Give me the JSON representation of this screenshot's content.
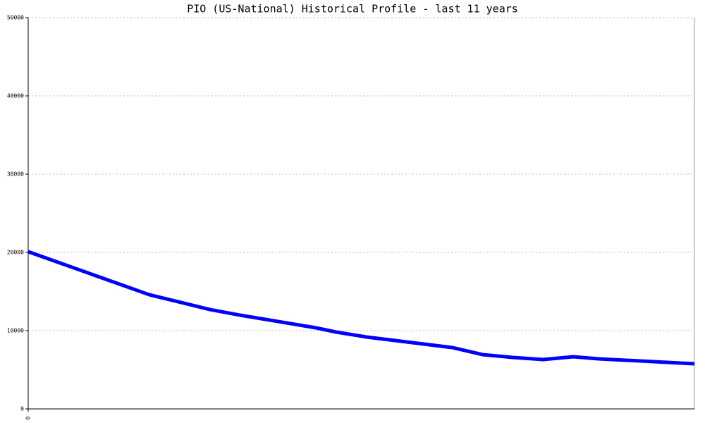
{
  "chart_data": {
    "type": "line",
    "title": "PIO (US-National) Historical Profile - last 11 years",
    "x": [
      0,
      24,
      36,
      42,
      57,
      61,
      67,
      84,
      90,
      96,
      102,
      108,
      113,
      132
    ],
    "series": [
      {
        "color": "#0000ff",
        "values": [
          20090,
          14590,
          12700,
          11980,
          10360,
          9820,
          9190,
          7840,
          6940,
          6580,
          6310,
          6670,
          6400,
          5770
        ]
      }
    ],
    "xlim": [
      0,
      132
    ],
    "xticks": [
      0
    ],
    "ylim": [
      0,
      50000
    ],
    "yticks": [
      0,
      10000,
      20000,
      30000,
      40000,
      50000
    ],
    "grid": true
  }
}
